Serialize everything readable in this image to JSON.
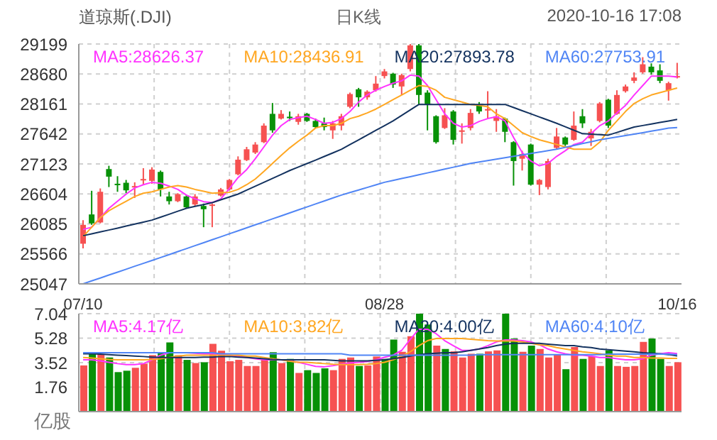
{
  "chart_data": [
    {
      "type": "candlestick",
      "title": "道琼斯(.DJI)",
      "subtitle": "日K线",
      "annotations": [
        "2020-10-16 17:08"
      ],
      "categories": [
        "07/10",
        null,
        null,
        null,
        null,
        null,
        null,
        null,
        null,
        null,
        null,
        null,
        null,
        null,
        null,
        null,
        null,
        null,
        null,
        null,
        null,
        null,
        null,
        null,
        null,
        null,
        null,
        null,
        null,
        null,
        null,
        null,
        null,
        null,
        null,
        "08/28",
        null,
        null,
        null,
        null,
        null,
        null,
        null,
        null,
        null,
        null,
        null,
        null,
        null,
        null,
        null,
        null,
        null,
        null,
        null,
        null,
        null,
        null,
        null,
        null,
        null,
        null,
        null,
        null,
        null,
        null,
        null,
        null,
        null,
        "10/16"
      ],
      "ohlc": [
        [
          25742,
          26151,
          25661,
          26069
        ],
        [
          26249,
          26658,
          26069,
          26094
        ],
        [
          26110,
          26699,
          26094,
          26641
        ],
        [
          27034,
          27091,
          26723,
          26903
        ],
        [
          26780,
          26911,
          26641,
          26764
        ],
        [
          26797,
          26846,
          26617,
          26666
        ],
        [
          26723,
          26805,
          26535,
          26740
        ],
        [
          26846,
          27050,
          26764,
          26862
        ],
        [
          26830,
          27066,
          26780,
          27026
        ],
        [
          26985,
          27009,
          26560,
          26682
        ],
        [
          26560,
          26641,
          26421,
          26478
        ],
        [
          26478,
          26617,
          26462,
          26601
        ],
        [
          26560,
          26584,
          26355,
          26372
        ],
        [
          26421,
          26601,
          26388,
          26560
        ],
        [
          26396,
          26437,
          26028,
          26339
        ],
        [
          26404,
          26437,
          26028,
          26421
        ],
        [
          26576,
          26707,
          26560,
          26682
        ],
        [
          26682,
          26862,
          26666,
          26846
        ],
        [
          26944,
          27254,
          26927,
          27197
        ],
        [
          27189,
          27418,
          27173,
          27377
        ],
        [
          27320,
          27500,
          27295,
          27459
        ],
        [
          27500,
          27826,
          27483,
          27786
        ],
        [
          27990,
          28178,
          27663,
          27704
        ],
        [
          27908,
          28055,
          27892,
          27990
        ],
        [
          27940,
          28031,
          27867,
          27925
        ],
        [
          27851,
          27990,
          27802,
          27949
        ],
        [
          27990,
          28006,
          27851,
          27867
        ],
        [
          27867,
          27908,
          27745,
          27761
        ],
        [
          27826,
          27925,
          27704,
          27761
        ],
        [
          27704,
          27867,
          27557,
          27826
        ],
        [
          27786,
          27990,
          27704,
          27949
        ],
        [
          28112,
          28358,
          28088,
          28333
        ],
        [
          28415,
          28439,
          28112,
          28276
        ],
        [
          28276,
          28398,
          28235,
          28374
        ],
        [
          28398,
          28644,
          28374,
          28513
        ],
        [
          28644,
          28766,
          28603,
          28725
        ],
        [
          28685,
          28701,
          28439,
          28497
        ],
        [
          28464,
          28685,
          28317,
          28660
        ],
        [
          28766,
          29199,
          28725,
          29175
        ],
        [
          29175,
          29199,
          28153,
          28317
        ],
        [
          28358,
          28398,
          27704,
          28153
        ],
        [
          27949,
          27965,
          27475,
          27500
        ],
        [
          27745,
          28088,
          27729,
          27965
        ],
        [
          28031,
          28055,
          27459,
          27540
        ],
        [
          27679,
          27826,
          27475,
          27704
        ],
        [
          27745,
          28072,
          27704,
          28006
        ],
        [
          28153,
          28194,
          27990,
          28031
        ],
        [
          28047,
          28382,
          27908,
          28072
        ],
        [
          27867,
          28072,
          27679,
          27949
        ],
        [
          27908,
          27925,
          27500,
          27679
        ],
        [
          27500,
          27516,
          26748,
          27173
        ],
        [
          27213,
          27352,
          27009,
          27295
        ],
        [
          27459,
          27475,
          26748,
          26764
        ],
        [
          26764,
          26862,
          26584,
          26846
        ],
        [
          26723,
          27213,
          26682,
          27173
        ],
        [
          27401,
          27745,
          27377,
          27598
        ],
        [
          27581,
          27598,
          27434,
          27459
        ],
        [
          27540,
          28031,
          27524,
          27786
        ],
        [
          27949,
          28072,
          27745,
          27826
        ],
        [
          27565,
          27729,
          27434,
          27679
        ],
        [
          27867,
          28194,
          27843,
          28170
        ],
        [
          28235,
          28251,
          27745,
          27786
        ],
        [
          27990,
          28398,
          27974,
          28317
        ],
        [
          28382,
          28497,
          28358,
          28464
        ],
        [
          28562,
          28709,
          28521,
          28619
        ],
        [
          28709,
          28971,
          28685,
          28848
        ],
        [
          28807,
          28864,
          28668,
          28709
        ],
        [
          28742,
          28848,
          28521,
          28562
        ],
        [
          28398,
          28546,
          28219,
          28521
        ],
        [
          28627,
          28873,
          28603,
          28644
        ]
      ],
      "colors": [
        "#f65151",
        "#079107",
        "#f65151",
        "#079107",
        "#079107",
        "#079107",
        "#f65151",
        "#f65151",
        "#f65151",
        "#079107",
        "#079107",
        "#f65151",
        "#079107",
        "#f65151",
        "#079107",
        "#f65151",
        "#f65151",
        "#f65151",
        "#f65151",
        "#f65151",
        "#f65151",
        "#f65151",
        "#079107",
        "#f65151",
        "#079107",
        "#f65151",
        "#079107",
        "#079107",
        "#079107",
        "#f65151",
        "#f65151",
        "#f65151",
        "#079107",
        "#f65151",
        "#f65151",
        "#f65151",
        "#079107",
        "#f65151",
        "#f65151",
        "#079107",
        "#079107",
        "#079107",
        "#f65151",
        "#079107",
        "#f65151",
        "#f65151",
        "#079107",
        "#f65151",
        "#f65151",
        "#079107",
        "#079107",
        "#f65151",
        "#079107",
        "#f65151",
        "#f65151",
        "#f65151",
        "#079107",
        "#f65151",
        "#079107",
        "#f65151",
        "#f65151",
        "#079107",
        "#f65151",
        "#f65151",
        "#f65151",
        "#f65151",
        "#079107",
        "#079107",
        "#f65151",
        "#f65151"
      ],
      "series": [
        {
          "name": "MA5:28626.37",
          "type": "line",
          "color": "#ff33ff",
          "values": [
            25988,
            26028,
            26192,
            26355,
            26478,
            26601,
            26707,
            26764,
            26805,
            26789,
            26740,
            26682,
            26584,
            26519,
            26470,
            26453,
            26519,
            26699,
            26887,
            27026,
            27213,
            27418,
            27622,
            27786,
            27892,
            27925,
            27949,
            27892,
            27826,
            27843,
            27908,
            28031,
            28194,
            28317,
            28398,
            28464,
            28521,
            28562,
            28660,
            28644,
            28480,
            28235,
            27990,
            27826,
            27761,
            27786,
            27859,
            27908,
            27941,
            27867,
            27581,
            27320,
            27173,
            27091,
            27132,
            27254,
            27352,
            27459,
            27500,
            27647,
            27786,
            27867,
            28006,
            28137,
            28317,
            28480,
            28644,
            28644,
            28644,
            28627
          ]
        },
        {
          "name": "MA10:28436.91",
          "type": "line",
          "color": "#ffa722",
          "values": [
            25865,
            26028,
            26192,
            26314,
            26396,
            26478,
            26560,
            26617,
            26641,
            26682,
            26723,
            26748,
            26723,
            26682,
            26650,
            26617,
            26625,
            26633,
            26682,
            26764,
            26862,
            26993,
            27132,
            27271,
            27401,
            27516,
            27622,
            27745,
            27786,
            27786,
            27826,
            27908,
            27949,
            28006,
            28072,
            28153,
            28235,
            28317,
            28398,
            28480,
            28464,
            28398,
            28276,
            28235,
            28194,
            28153,
            28137,
            28112,
            27990,
            27908,
            27786,
            27663,
            27598,
            27540,
            27500,
            27459,
            27418,
            27377,
            27377,
            27377,
            27500,
            27704,
            27867,
            28031,
            28170,
            28251,
            28317,
            28358,
            28398,
            28437
          ]
        },
        {
          "name": "MA20:27893.78",
          "type": "line",
          "color": "#13325f",
          "values": [
            25881,
            25914,
            25947,
            25979,
            26012,
            26047,
            26082,
            26116,
            26151,
            26202,
            26253,
            26304,
            26355,
            26388,
            26420,
            26453,
            26502,
            26552,
            26601,
            26669,
            26737,
            26805,
            26873,
            26941,
            27009,
            27069,
            27129,
            27189,
            27252,
            27314,
            27377,
            27459,
            27540,
            27622,
            27704,
            27785,
            27867,
            27962,
            28058,
            28153,
            28153,
            28153,
            28153,
            28153,
            28153,
            28153,
            28153,
            28153,
            28153,
            28153,
            28099,
            28044,
            27990,
            27935,
            27881,
            27826,
            27766,
            27707,
            27647,
            27639,
            27630,
            27622,
            27668,
            27715,
            27761,
            27788,
            27814,
            27841,
            27867,
            27894
          ]
        },
        {
          "name": "MA60:27753.91",
          "type": "line",
          "color": "#5085f5",
          "values": [
            25048,
            25099,
            25149,
            25200,
            25250,
            25301,
            25352,
            25402,
            25453,
            25503,
            25554,
            25606,
            25657,
            25709,
            25760,
            25812,
            25863,
            25915,
            25966,
            26018,
            26069,
            26121,
            26172,
            26224,
            26275,
            26327,
            26378,
            26430,
            26481,
            26533,
            26584,
            26628,
            26672,
            26716,
            26760,
            26805,
            26838,
            26870,
            26903,
            26935,
            26968,
            27001,
            27034,
            27066,
            27099,
            27132,
            27156,
            27181,
            27205,
            27230,
            27254,
            27279,
            27303,
            27328,
            27352,
            27377,
            27410,
            27442,
            27475,
            27507,
            27540,
            27565,
            27589,
            27614,
            27638,
            27663,
            27690,
            27716,
            27743,
            27754
          ]
        }
      ],
      "ylim": [
        25047,
        29199
      ],
      "yticks": [
        25047,
        25566,
        26085,
        26604,
        27123,
        27642,
        28161,
        28680,
        29199
      ],
      "grid": true,
      "legend": "top",
      "marker": "none"
    },
    {
      "type": "bar",
      "ylabel": "亿股",
      "categories": [
        null,
        null,
        null,
        null,
        null,
        null,
        null,
        null,
        null,
        null,
        null,
        null,
        null,
        null,
        null,
        null,
        null,
        null,
        null,
        null,
        null,
        null,
        null,
        null,
        null,
        null,
        null,
        null,
        null,
        null,
        null,
        null,
        null,
        null,
        null,
        null,
        null,
        null,
        null,
        null,
        null,
        null,
        null,
        null,
        null,
        null,
        null,
        null,
        null,
        null,
        null,
        null,
        null,
        null,
        null,
        null,
        null,
        null,
        null,
        null,
        null,
        null,
        null,
        null,
        null,
        null,
        null,
        null,
        null,
        null
      ],
      "values": [
        3.32,
        4.13,
        4.13,
        3.89,
        2.84,
        2.94,
        3.15,
        3.45,
        4.06,
        4.27,
        4.98,
        4.06,
        3.72,
        3.49,
        3.55,
        4.87,
        4.37,
        3.62,
        3.72,
        3.28,
        3.28,
        3.72,
        4.27,
        3.49,
        3.79,
        2.78,
        2.98,
        2.78,
        3.11,
        2.98,
        3.79,
        3.89,
        3.28,
        3.32,
        3.96,
        3.79,
        5.18,
        4.3,
        5.42,
        7.04,
        6.26,
        4.74,
        4.5,
        4.33,
        3.89,
        4.16,
        4.16,
        4.33,
        4.4,
        7.04,
        5.25,
        4.3,
        4.74,
        4.5,
        3.89,
        4.13,
        3.05,
        4.64,
        3.79,
        3.99,
        3.28,
        4.4,
        3.28,
        3.22,
        3.28,
        5.01,
        5.25,
        3.79,
        3.28,
        3.55
      ],
      "colors": [
        "#f65151",
        "#079107",
        "#f65151",
        "#079107",
        "#079107",
        "#079107",
        "#f65151",
        "#f65151",
        "#f65151",
        "#079107",
        "#079107",
        "#f65151",
        "#079107",
        "#f65151",
        "#079107",
        "#f65151",
        "#f65151",
        "#f65151",
        "#f65151",
        "#f65151",
        "#f65151",
        "#f65151",
        "#079107",
        "#f65151",
        "#079107",
        "#f65151",
        "#079107",
        "#079107",
        "#079107",
        "#f65151",
        "#f65151",
        "#f65151",
        "#079107",
        "#f65151",
        "#f65151",
        "#079107",
        "#079107",
        "#f65151",
        "#f65151",
        "#079107",
        "#079107",
        "#f65151",
        "#079107",
        "#f65151",
        "#f65151",
        "#f65151",
        "#079107",
        "#f65151",
        "#f65151",
        "#079107",
        "#079107",
        "#f65151",
        "#079107",
        "#f65151",
        "#f65151",
        "#f65151",
        "#079107",
        "#f65151",
        "#079107",
        "#f65151",
        "#f65151",
        "#079107",
        "#f65151",
        "#f65151",
        "#f65151",
        "#f65151",
        "#079107",
        "#079107",
        "#f65151",
        "#f65151"
      ],
      "series": [
        {
          "name": "MA5:4.17亿",
          "type": "line",
          "color": "#ff33ff",
          "values": [
            3.72,
            3.72,
            3.65,
            3.55,
            3.45,
            3.38,
            3.38,
            3.45,
            3.72,
            4.06,
            4.23,
            4.23,
            4.23,
            4.2,
            4.16,
            4.16,
            4.1,
            4.06,
            3.99,
            3.89,
            3.8,
            3.72,
            3.72,
            3.72,
            3.65,
            3.55,
            3.4,
            3.25,
            3.22,
            3.3,
            3.4,
            3.5,
            3.55,
            3.6,
            3.72,
            3.9,
            4.06,
            4.4,
            5.2,
            5.92,
            5.92,
            5.6,
            5.1,
            4.74,
            4.4,
            4.4,
            4.5,
            4.74,
            5.01,
            5.15,
            5.15,
            5.1,
            5.01,
            4.8,
            4.5,
            4.3,
            4.16,
            4.06,
            4.06,
            3.99,
            3.89,
            3.89,
            3.8,
            3.72,
            3.72,
            3.8,
            4.06,
            4.16,
            4.23,
            4.17
          ]
        },
        {
          "name": "MA10:3.82亿",
          "type": "line",
          "color": "#ffa722",
          "values": [
            3.89,
            3.85,
            3.8,
            3.75,
            3.72,
            3.72,
            3.72,
            3.72,
            3.75,
            3.8,
            3.89,
            3.99,
            4.06,
            4.06,
            4.06,
            4.06,
            4.06,
            4.06,
            4.06,
            3.99,
            3.99,
            3.89,
            3.8,
            3.72,
            3.62,
            3.55,
            3.55,
            3.5,
            3.45,
            3.4,
            3.38,
            3.38,
            3.38,
            3.4,
            3.45,
            3.55,
            3.72,
            3.99,
            4.3,
            4.74,
            5.1,
            5.25,
            5.25,
            5.25,
            5.25,
            5.2,
            5.15,
            5.1,
            5.08,
            5.08,
            5.08,
            5.01,
            4.91,
            4.8,
            4.74,
            4.6,
            4.5,
            4.4,
            4.3,
            4.23,
            4.16,
            4.06,
            3.99,
            3.99,
            3.89,
            3.89,
            3.85,
            3.85,
            3.82,
            3.82
          ]
        },
        {
          "name": "MA20:4.00亿",
          "type": "line",
          "color": "#13325f",
          "values": [
            4.16,
            4.16,
            4.13,
            4.1,
            4.06,
            4.03,
            3.99,
            3.96,
            3.92,
            3.89,
            3.89,
            3.89,
            3.89,
            3.89,
            3.92,
            3.92,
            3.96,
            3.96,
            3.92,
            3.89,
            3.85,
            3.8,
            3.75,
            3.72,
            3.72,
            3.72,
            3.72,
            3.72,
            3.72,
            3.68,
            3.65,
            3.65,
            3.65,
            3.65,
            3.68,
            3.72,
            3.8,
            3.89,
            3.99,
            4.1,
            4.16,
            4.2,
            4.23,
            4.23,
            4.3,
            4.4,
            4.5,
            4.6,
            4.74,
            4.85,
            4.91,
            4.91,
            4.91,
            4.91,
            4.85,
            4.8,
            4.74,
            4.74,
            4.65,
            4.6,
            4.5,
            4.45,
            4.4,
            4.35,
            4.3,
            4.23,
            4.2,
            4.16,
            4.1,
            4.0
          ]
        },
        {
          "name": "MA60:4.10亿",
          "type": "line",
          "color": "#5085f5",
          "values": [
            4.23,
            4.23,
            4.23,
            4.23,
            4.23,
            4.23,
            4.23,
            4.23,
            4.23,
            4.23,
            4.23,
            4.23,
            4.23,
            4.23,
            4.23,
            4.23,
            4.16,
            4.16,
            4.16,
            4.16,
            4.16,
            4.16,
            4.16,
            4.16,
            4.16,
            4.16,
            4.16,
            4.16,
            4.16,
            4.16,
            4.16,
            4.06,
            4.06,
            4.06,
            4.06,
            4.06,
            4.06,
            4.06,
            4.06,
            4.06,
            4.06,
            4.06,
            4.06,
            4.06,
            4.06,
            4.06,
            4.1,
            4.1,
            4.1,
            4.1,
            4.1,
            4.1,
            4.1,
            4.1,
            4.1,
            4.1,
            4.1,
            4.1,
            4.1,
            4.1,
            4.1,
            4.13,
            4.13,
            4.13,
            4.13,
            4.13,
            4.13,
            4.13,
            4.13,
            4.1
          ]
        }
      ],
      "ylim": [
        0,
        7.04
      ],
      "yticks": [
        1.76,
        3.52,
        5.28,
        7.04
      ],
      "grid": true,
      "legend": "top",
      "marker": "none",
      "tick_labels": "y"
    }
  ]
}
